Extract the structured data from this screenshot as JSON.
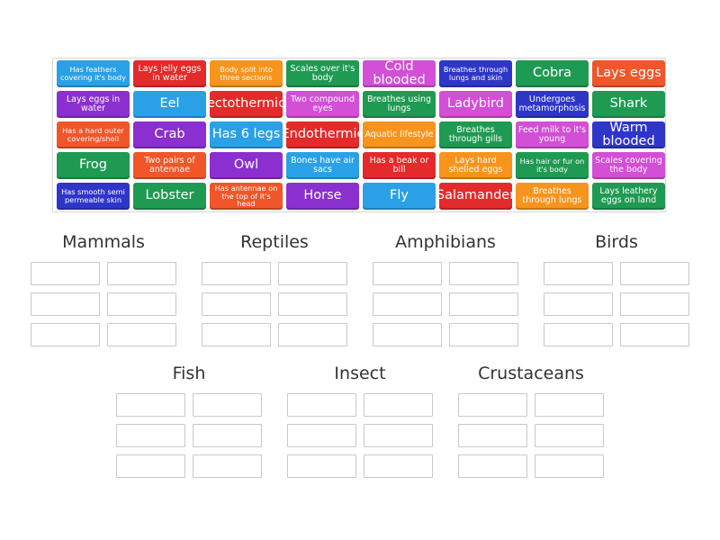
{
  "tiles": [
    {
      "label": "Has feathers covering it's body",
      "color": "#2aa1e6"
    },
    {
      "label": "Lays jelly eggs in water",
      "color": "#e42a2a"
    },
    {
      "label": "Body split into three sections",
      "color": "#f7941d"
    },
    {
      "label": "Scales over it's body",
      "color": "#1f9a52"
    },
    {
      "label": "Cold blooded",
      "color": "#d24fd6"
    },
    {
      "label": "Breathes through lungs and skin",
      "color": "#2e36c8"
    },
    {
      "label": "Cobra",
      "color": "#1f9a52"
    },
    {
      "label": "Lays eggs",
      "color": "#f0562a"
    },
    {
      "label": "Lays eggs in water",
      "color": "#8c2fd0"
    },
    {
      "label": "Eel",
      "color": "#2aa1e6"
    },
    {
      "label": "ectothermic",
      "color": "#e42a2a"
    },
    {
      "label": "Two compound eyes",
      "color": "#d24fd6"
    },
    {
      "label": "Breathes using lungs",
      "color": "#1f9a52"
    },
    {
      "label": "Ladybird",
      "color": "#d24fd6"
    },
    {
      "label": "Undergoes metamorphosis",
      "color": "#2e36c8"
    },
    {
      "label": "Shark",
      "color": "#1f9a52"
    },
    {
      "label": "Has a hard outer covering/shell",
      "color": "#f0562a"
    },
    {
      "label": "Crab",
      "color": "#8c2fd0"
    },
    {
      "label": "Has 6 legs",
      "color": "#2aa1e6"
    },
    {
      "label": "Endothermic",
      "color": "#e42a2a"
    },
    {
      "label": "Aquatic lifestyle",
      "color": "#f7941d"
    },
    {
      "label": "Breathes through gills",
      "color": "#1f9a52"
    },
    {
      "label": "Feed milk to it's young",
      "color": "#d24fd6"
    },
    {
      "label": "Warm blooded",
      "color": "#2e36c8"
    },
    {
      "label": "Frog",
      "color": "#1f9a52"
    },
    {
      "label": "Two pairs of antennae",
      "color": "#f0562a"
    },
    {
      "label": "Owl",
      "color": "#8c2fd0"
    },
    {
      "label": "Bones have air sacs",
      "color": "#2aa1e6"
    },
    {
      "label": "Has a beak or bill",
      "color": "#e42a2a"
    },
    {
      "label": "Lays hard shelled eggs",
      "color": "#f7941d"
    },
    {
      "label": "Has hair or fur on it's body",
      "color": "#1f9a52"
    },
    {
      "label": "Scales covering the body",
      "color": "#d24fd6"
    },
    {
      "label": "Has smooth semi permeable skin",
      "color": "#2e36c8"
    },
    {
      "label": "Lobster",
      "color": "#1f9a52"
    },
    {
      "label": "Has antennae on the top of it's head",
      "color": "#f0562a"
    },
    {
      "label": "Horse",
      "color": "#8c2fd0"
    },
    {
      "label": "Fly",
      "color": "#2aa1e6"
    },
    {
      "label": "Salamander",
      "color": "#e42a2a"
    },
    {
      "label": "Breathes through lungs",
      "color": "#f7941d"
    },
    {
      "label": "Lays leathery eggs on land",
      "color": "#1f9a52"
    }
  ],
  "groups": [
    {
      "title": "Mammals"
    },
    {
      "title": "Reptiles"
    },
    {
      "title": "Amphibians"
    },
    {
      "title": "Birds"
    },
    {
      "title": "Fish"
    },
    {
      "title": "Insect"
    },
    {
      "title": "Crustaceans"
    }
  ]
}
